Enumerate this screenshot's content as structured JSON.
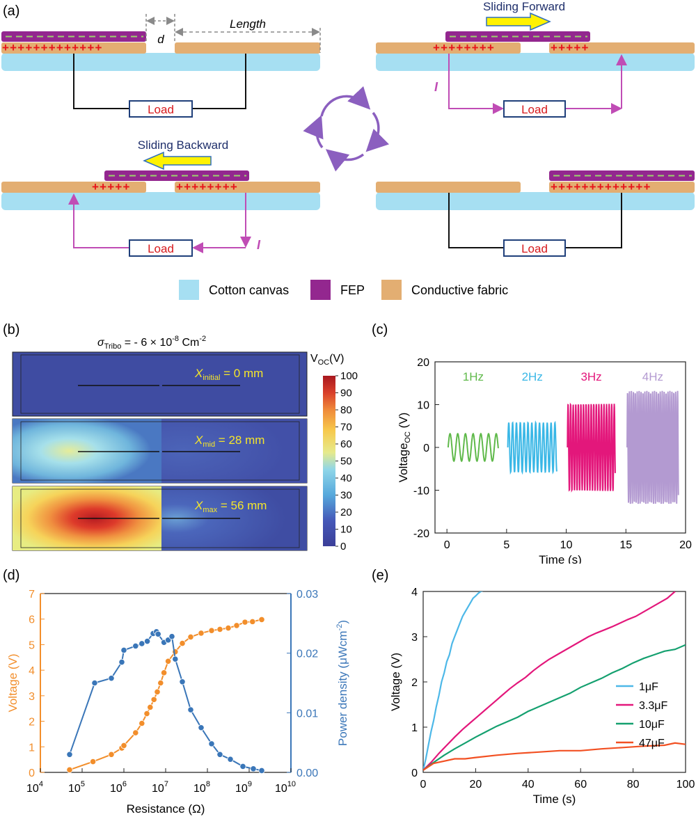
{
  "panel_a": {
    "label": "(a)",
    "gap_label": "d",
    "length_label": "Length",
    "load_label": "Load",
    "current_label": "I",
    "forward_label": "Sliding Forward",
    "backward_label": "Sliding Backward",
    "legend": [
      {
        "label": "Cotton canvas",
        "color": "#a6dff2"
      },
      {
        "label": "FEP",
        "color": "#93278f"
      },
      {
        "label": "Conductive fabric",
        "color": "#e3ae72"
      }
    ],
    "colors": {
      "canvas": "#a6dff2",
      "fep": "#93278f",
      "fabric": "#e3ae72",
      "current": "#c04cb5",
      "arrow": "#fff200",
      "cycle": "#8b5fbf"
    }
  },
  "panel_b": {
    "label": "(b)",
    "sigma_sym": "σ",
    "sigma_sub": "Tribo",
    "sigma_val": " = - 6 × 10",
    "sigma_exp1": "-8",
    "sigma_unit": " Cm",
    "sigma_exp2": "-2",
    "colorbar_title": "V",
    "colorbar_sub": "OC",
    "colorbar_unit": "(V)",
    "colorbar_ticks": [
      "100",
      "90",
      "80",
      "70",
      "60",
      "50",
      "40",
      "30",
      "20",
      "10",
      "0"
    ],
    "states": [
      {
        "sym": "X",
        "sub": "initial",
        "value": " = 0 mm"
      },
      {
        "sym": "X",
        "sub": "mid",
        "value": " = 28 mm"
      },
      {
        "sym": "X",
        "sub": "max",
        "value": " = 56 mm"
      }
    ]
  },
  "chart_data": [
    {
      "panel": "(c)",
      "type": "line",
      "xlabel": "Time (s)",
      "ylabel_main": "Voltage",
      "ylabel_sub": "OC",
      "ylabel_unit": " (V)",
      "xlim": [
        -1,
        20
      ],
      "ylim": [
        -20,
        20
      ],
      "xticks": [
        0,
        5,
        10,
        15,
        20
      ],
      "yticks": [
        -20,
        -10,
        0,
        10,
        20
      ],
      "series": [
        {
          "name": "1Hz",
          "color": "#5fb94a",
          "t_start": 0.1,
          "t_end": 4.3,
          "freq": 1.0,
          "amplitude": 3.2
        },
        {
          "name": "2Hz",
          "color": "#3ab7e6",
          "t_start": 5.1,
          "t_end": 9.2,
          "freq": 2.0,
          "amplitude": 5.8
        },
        {
          "name": "3Hz",
          "color": "#e3177b",
          "t_start": 10.1,
          "t_end": 14.1,
          "freq": 3.0,
          "amplitude": 10.2
        },
        {
          "name": "4Hz",
          "color": "#b39ad1",
          "t_start": 15.1,
          "t_end": 19.4,
          "freq": 4.0,
          "amplitude": 13.2
        }
      ]
    },
    {
      "panel": "(d)",
      "type": "line",
      "xlabel": "Resistance (Ω)",
      "ylabel_left": "Voltage (V)",
      "ylabel_right_main": "Power density (μWcm",
      "ylabel_right_exp": "-2",
      "ylabel_right_close": ")",
      "x_scale": "log",
      "xlim_log10": [
        4,
        10
      ],
      "xtick_exponents": [
        "4",
        "5",
        "6",
        "7",
        "8",
        "9",
        "10"
      ],
      "ylim_left": [
        0,
        7
      ],
      "yticks_left": [
        0,
        1,
        2,
        3,
        4,
        5,
        6,
        7
      ],
      "ylim_right": [
        0,
        0.03
      ],
      "yticks_right": [
        "0.00",
        "0.01",
        "0.02",
        "0.03"
      ],
      "series": [
        {
          "name": "Voltage",
          "axis": "left",
          "color": "#f28e2b",
          "x_log10": [
            4.7,
            5.26,
            5.7,
            5.95,
            6.0,
            6.28,
            6.43,
            6.55,
            6.63,
            6.72,
            6.8,
            6.88,
            6.96,
            7.06,
            7.23,
            7.4,
            7.6,
            7.85,
            8.1,
            8.3,
            8.5,
            8.7,
            8.9,
            9.08,
            9.3
          ],
          "values": [
            0.1,
            0.42,
            0.7,
            0.95,
            1.05,
            1.55,
            1.92,
            2.3,
            2.55,
            2.85,
            3.15,
            3.5,
            3.9,
            4.35,
            4.72,
            5.05,
            5.3,
            5.45,
            5.55,
            5.6,
            5.65,
            5.75,
            5.88,
            5.9,
            5.98
          ]
        },
        {
          "name": "Power density",
          "axis": "right",
          "color": "#3a76b8",
          "x_log10": [
            4.7,
            5.3,
            5.7,
            5.95,
            6.0,
            6.28,
            6.43,
            6.56,
            6.7,
            6.78,
            6.82,
            6.96,
            7.06,
            7.15,
            7.23,
            7.4,
            7.6,
            7.85,
            8.1,
            8.3,
            8.55,
            8.85,
            9.1,
            9.3
          ],
          "values": [
            0.003,
            0.015,
            0.0158,
            0.0185,
            0.0205,
            0.0212,
            0.0216,
            0.022,
            0.0233,
            0.0236,
            0.0232,
            0.0218,
            0.0222,
            0.0228,
            0.019,
            0.0152,
            0.0105,
            0.0075,
            0.0048,
            0.003,
            0.0022,
            0.001,
            0.0006,
            0.0003
          ]
        }
      ]
    },
    {
      "panel": "(e)",
      "type": "line",
      "xlabel": "Time (s)",
      "ylabel": "Voltage (V)",
      "xlim": [
        0,
        100
      ],
      "ylim": [
        0,
        4
      ],
      "xticks": [
        0,
        20,
        40,
        60,
        80,
        100
      ],
      "yticks": [
        0,
        1,
        2,
        3,
        4
      ],
      "legend": "bottom-right",
      "series": [
        {
          "name": "1μF",
          "color": "#4db8e8",
          "x": [
            0,
            1,
            2,
            3,
            4,
            5,
            6,
            7,
            8,
            9,
            10,
            11,
            12,
            13,
            14,
            15,
            16,
            17,
            18,
            19,
            20,
            21,
            22,
            23
          ],
          "values": [
            0.05,
            0.3,
            0.6,
            0.9,
            1.15,
            1.45,
            1.7,
            2.0,
            2.2,
            2.45,
            2.6,
            2.85,
            3.0,
            3.15,
            3.3,
            3.45,
            3.55,
            3.65,
            3.75,
            3.85,
            3.9,
            3.96,
            4.0,
            4.02
          ]
        },
        {
          "name": "3.3μF",
          "color": "#e3177b",
          "x": [
            0,
            3,
            6,
            9,
            12,
            15,
            18,
            21,
            24,
            27,
            30,
            33,
            36,
            39,
            42,
            45,
            48,
            51,
            54,
            57,
            60,
            63,
            66,
            69,
            72,
            75,
            78,
            81,
            84,
            87,
            90,
            93,
            96
          ],
          "values": [
            0.05,
            0.22,
            0.42,
            0.6,
            0.78,
            0.95,
            1.1,
            1.25,
            1.4,
            1.55,
            1.7,
            1.85,
            1.98,
            2.1,
            2.25,
            2.38,
            2.5,
            2.6,
            2.7,
            2.8,
            2.9,
            3.0,
            3.08,
            3.15,
            3.22,
            3.3,
            3.38,
            3.45,
            3.55,
            3.65,
            3.75,
            3.85,
            4.0
          ]
        },
        {
          "name": "10μF",
          "color": "#14a06f",
          "x": [
            0,
            4,
            8,
            12,
            16,
            20,
            24,
            28,
            32,
            36,
            40,
            44,
            48,
            52,
            56,
            60,
            64,
            68,
            72,
            76,
            80,
            84,
            88,
            92,
            96,
            100
          ],
          "values": [
            0.05,
            0.22,
            0.38,
            0.52,
            0.65,
            0.78,
            0.9,
            1.02,
            1.12,
            1.22,
            1.35,
            1.45,
            1.55,
            1.65,
            1.75,
            1.88,
            1.98,
            2.08,
            2.2,
            2.3,
            2.42,
            2.52,
            2.6,
            2.68,
            2.72,
            2.82
          ]
        },
        {
          "name": "47μF",
          "color": "#f25022",
          "x": [
            0,
            4,
            8,
            12,
            16,
            20,
            28,
            36,
            44,
            52,
            60,
            68,
            76,
            84,
            92,
            96,
            100
          ],
          "values": [
            0.05,
            0.2,
            0.25,
            0.3,
            0.3,
            0.33,
            0.38,
            0.42,
            0.45,
            0.48,
            0.48,
            0.52,
            0.55,
            0.58,
            0.6,
            0.65,
            0.62
          ]
        }
      ]
    }
  ]
}
